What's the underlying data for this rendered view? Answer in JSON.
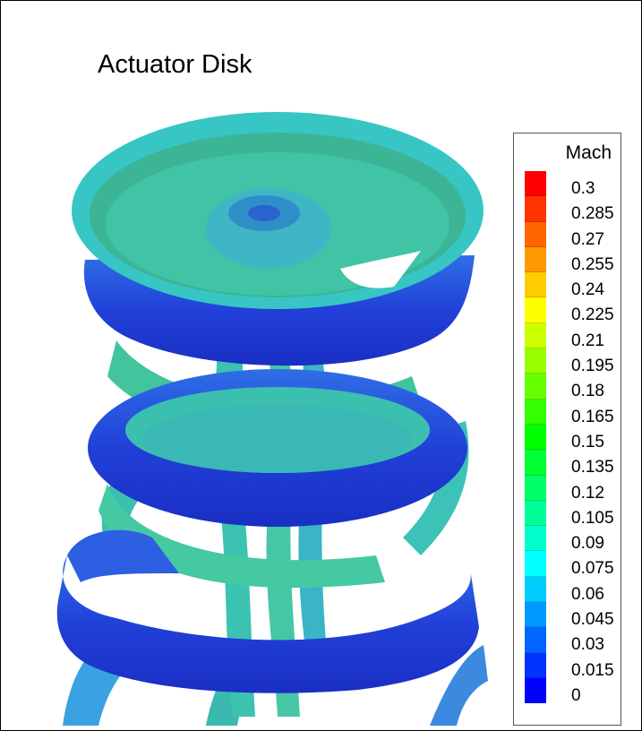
{
  "title": "Actuator Disk",
  "legend": {
    "title": "Mach",
    "levels": [
      {
        "label": "0.3",
        "color": "#ff0000"
      },
      {
        "label": "0.285",
        "color": "#ff3300"
      },
      {
        "label": "0.27",
        "color": "#ff6600"
      },
      {
        "label": "0.255",
        "color": "#ff9900"
      },
      {
        "label": "0.24",
        "color": "#ffcc00"
      },
      {
        "label": "0.225",
        "color": "#ffff00"
      },
      {
        "label": "0.21",
        "color": "#ccff00"
      },
      {
        "label": "0.195",
        "color": "#99ff00"
      },
      {
        "label": "0.18",
        "color": "#66ff00"
      },
      {
        "label": "0.165",
        "color": "#33ff00"
      },
      {
        "label": "0.15",
        "color": "#00ff00"
      },
      {
        "label": "0.135",
        "color": "#00ff33"
      },
      {
        "label": "0.12",
        "color": "#00ff66"
      },
      {
        "label": "0.105",
        "color": "#00ff99"
      },
      {
        "label": "0.09",
        "color": "#00ffcc"
      },
      {
        "label": "0.075",
        "color": "#00ffff"
      },
      {
        "label": "0.06",
        "color": "#00ccff"
      },
      {
        "label": "0.045",
        "color": "#0099ff"
      },
      {
        "label": "0.03",
        "color": "#0066ff"
      },
      {
        "label": "0.015",
        "color": "#0033ff"
      },
      {
        "label": "0",
        "color": "#0000ff"
      }
    ]
  },
  "colors": {
    "disk_rim": "#35c8c0",
    "disk_inner": "#3ab89a",
    "vortex_ring": "#2a48d8",
    "wake_core": "#3bbfae"
  }
}
